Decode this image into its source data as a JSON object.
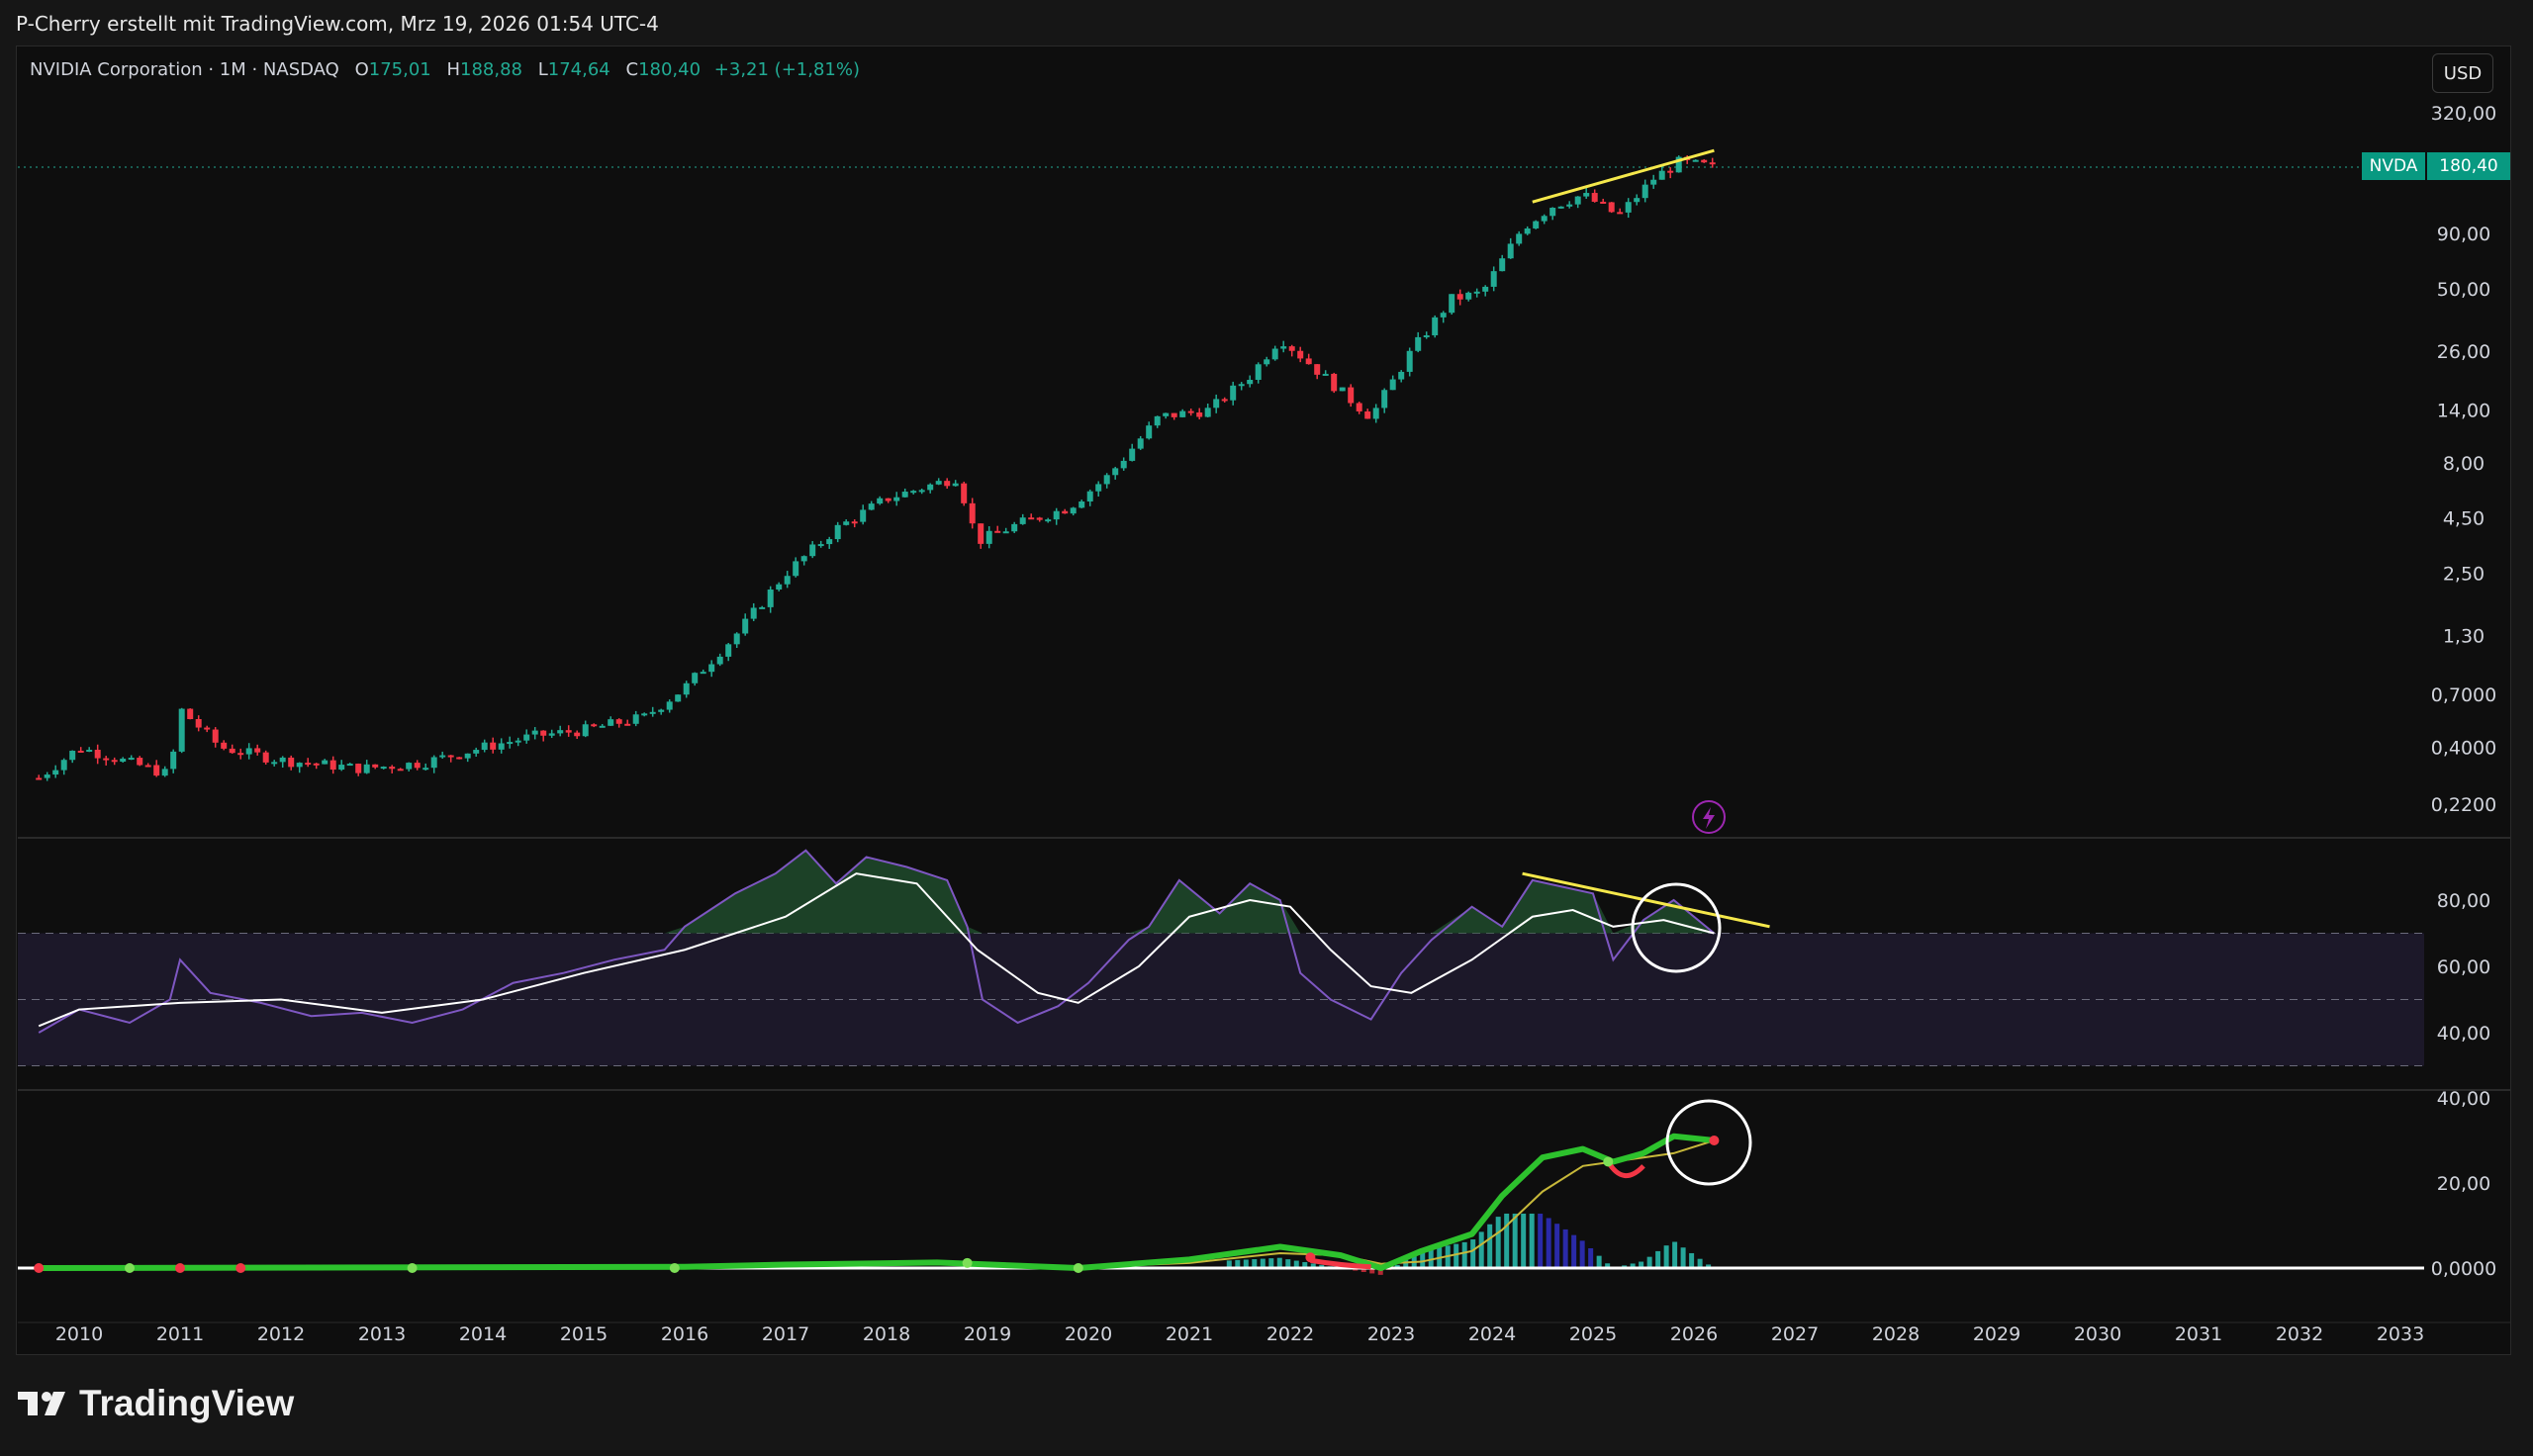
{
  "header": {
    "text": "P-Cherry erstellt mit TradingView.com, Mrz 19, 2026 01:54 UTC-4"
  },
  "legend": {
    "symbol": "NVIDIA Corporation · 1M · NASDAQ",
    "o_label": "O",
    "o_value": "175,01",
    "h_label": "H",
    "h_value": "188,88",
    "l_label": "L",
    "l_value": "174,64",
    "c_label": "C",
    "c_value": "180,40",
    "change": "+3,21 (+1,81%)"
  },
  "currency": "USD",
  "last_price": {
    "symbol": "NVDA",
    "value": "180,40"
  },
  "branding": {
    "name": "TradingView"
  },
  "colors": {
    "up": "#22ab94",
    "down": "#f23645",
    "trendline": "#f5e84b",
    "rsi": "#7e57c2",
    "rsi_ma": "#ffffff",
    "macd": "#2dc22d",
    "signal": "#c7b83a",
    "background": "#0e0e0e"
  },
  "chart_data": [
    {
      "type": "candlestick",
      "title": "NVIDIA Corporation · 1M · NASDAQ",
      "scale": "log",
      "y_ticks": [
        "320,00",
        "90,00",
        "50,00",
        "26,00",
        "14,00",
        "8,00",
        "4,50",
        "2,50",
        "1,30",
        "0,7000",
        "0,4000",
        "0,2200"
      ],
      "y_tick_values": [
        320,
        90,
        50,
        26,
        14,
        8,
        4.5,
        2.5,
        1.3,
        0.7,
        0.4,
        0.22
      ],
      "x_ticks": [
        "2010",
        "2011",
        "2012",
        "2013",
        "2014",
        "2015",
        "2016",
        "2017",
        "2018",
        "2019",
        "2020",
        "2021",
        "2022",
        "2023",
        "2024",
        "2025",
        "2026",
        "2027",
        "2028",
        "2029",
        "2030",
        "2031",
        "2032",
        "2033"
      ],
      "x_range": [
        2009.6,
        2033.5
      ],
      "annotation_anchors": [
        {
          "x": 2009.6,
          "y": 0.29
        },
        {
          "x": 2010.0,
          "y": 0.4
        },
        {
          "x": 2010.9,
          "y": 0.3
        },
        {
          "x": 2011.0,
          "y": 0.6
        },
        {
          "x": 2011.4,
          "y": 0.4
        },
        {
          "x": 2012.0,
          "y": 0.35
        },
        {
          "x": 2012.8,
          "y": 0.32
        },
        {
          "x": 2013.4,
          "y": 0.34
        },
        {
          "x": 2014.0,
          "y": 0.4
        },
        {
          "x": 2014.5,
          "y": 0.45
        },
        {
          "x": 2015.0,
          "y": 0.48
        },
        {
          "x": 2015.6,
          "y": 0.55
        },
        {
          "x": 2016.0,
          "y": 0.75
        },
        {
          "x": 2016.5,
          "y": 1.3
        },
        {
          "x": 2017.0,
          "y": 2.5
        },
        {
          "x": 2017.5,
          "y": 4.0
        },
        {
          "x": 2018.0,
          "y": 5.5
        },
        {
          "x": 2018.7,
          "y": 6.9
        },
        {
          "x": 2018.9,
          "y": 3.5
        },
        {
          "x": 2019.3,
          "y": 4.2
        },
        {
          "x": 2019.8,
          "y": 5.0
        },
        {
          "x": 2020.2,
          "y": 7.0
        },
        {
          "x": 2020.7,
          "y": 13.0
        },
        {
          "x": 2021.2,
          "y": 14.0
        },
        {
          "x": 2021.6,
          "y": 20.0
        },
        {
          "x": 2021.9,
          "y": 30.0
        },
        {
          "x": 2022.5,
          "y": 17.0
        },
        {
          "x": 2022.8,
          "y": 13.0
        },
        {
          "x": 2023.2,
          "y": 26.0
        },
        {
          "x": 2023.6,
          "y": 45.0
        },
        {
          "x": 2023.9,
          "y": 48.0
        },
        {
          "x": 2024.3,
          "y": 95.0
        },
        {
          "x": 2024.6,
          "y": 120.0
        },
        {
          "x": 2024.9,
          "y": 135.0
        },
        {
          "x": 2025.25,
          "y": 108.0
        },
        {
          "x": 2025.6,
          "y": 160.0
        },
        {
          "x": 2025.85,
          "y": 190.0
        },
        {
          "x": 2026.2,
          "y": 180.4
        }
      ],
      "last_close": 180.4,
      "annotations": [
        {
          "type": "trendline",
          "x": [
            2024.4,
            2026.2
          ],
          "y": [
            125,
            215
          ]
        }
      ]
    },
    {
      "type": "line",
      "panel": "RSI",
      "y_ticks": [
        "80,00",
        "60,00",
        "40,00"
      ],
      "y_tick_values": [
        80,
        60,
        40
      ],
      "bands": [
        30,
        50,
        70
      ],
      "series": [
        {
          "x": [
            2009.6,
            2010.0,
            2010.5,
            2010.9,
            2011.0,
            2011.3,
            2011.8,
            2012.3,
            2012.8,
            2013.3,
            2013.8,
            2014.3,
            2014.8,
            2015.3,
            2015.8,
            2016.0,
            2016.5,
            2016.9,
            2017.2,
            2017.5,
            2017.8,
            2018.2,
            2018.6,
            2018.8,
            2018.95,
            2019.3,
            2019.7,
            2020.0,
            2020.4,
            2020.6,
            2020.9,
            2021.3,
            2021.6,
            2021.9,
            2022.1,
            2022.4,
            2022.8,
            2023.1,
            2023.4,
            2023.8,
            2024.1,
            2024.4,
            2024.7,
            2025.0,
            2025.2,
            2025.5,
            2025.8,
            2026.2
          ],
          "y": [
            40,
            47,
            43,
            50,
            62,
            52,
            49,
            45,
            46,
            43,
            47,
            55,
            58,
            62,
            65,
            72,
            82,
            88,
            95,
            85,
            93,
            90,
            86,
            72,
            50,
            43,
            48,
            55,
            68,
            72,
            86,
            76,
            85,
            80,
            58,
            50,
            44,
            58,
            68,
            78,
            72,
            86,
            84,
            82,
            62,
            74,
            80,
            70
          ]
        },
        {
          "x": [
            2009.6,
            2010.0,
            2011.0,
            2012.0,
            2013.0,
            2014.0,
            2015.0,
            2016.0,
            2017.0,
            2017.7,
            2018.3,
            2018.9,
            2019.5,
            2019.9,
            2020.5,
            2021.0,
            2021.6,
            2022.0,
            2022.4,
            2022.8,
            2023.2,
            2023.8,
            2024.4,
            2024.8,
            2025.2,
            2025.7,
            2026.2
          ],
          "y": [
            42,
            47,
            49,
            50,
            46,
            50,
            58,
            65,
            75,
            88,
            85,
            65,
            52,
            49,
            60,
            75,
            80,
            78,
            65,
            54,
            52,
            62,
            75,
            77,
            72,
            74,
            70
          ]
        }
      ],
      "annotations": [
        {
          "type": "trendline",
          "x": [
            2024.3,
            2026.75
          ],
          "y": [
            88,
            72
          ]
        }
      ]
    },
    {
      "type": "line",
      "panel": "MACD",
      "y_ticks": [
        "40,00",
        "20,00",
        "0,0000"
      ],
      "y_tick_values": [
        40,
        20,
        0
      ],
      "series": [
        {
          "x": [
            2009.6,
            2016.0,
            2017.0,
            2018.5,
            2019.9,
            2021.0,
            2021.9,
            2022.5,
            2022.9,
            2023.3,
            2023.8,
            2024.1,
            2024.5,
            2024.9,
            2025.2,
            2025.5,
            2025.8,
            2026.2
          ],
          "y": [
            0,
            0.3,
            0.8,
            1.3,
            0,
            2,
            5,
            3,
            0,
            4,
            8,
            17,
            26,
            28,
            25,
            27,
            31,
            30
          ]
        },
        {
          "x": [
            2009.6,
            2016.0,
            2017.0,
            2018.5,
            2019.9,
            2021.0,
            2021.9,
            2022.5,
            2022.9,
            2023.3,
            2023.8,
            2024.1,
            2024.5,
            2024.9,
            2025.2,
            2025.5,
            2025.8,
            2026.2
          ],
          "y": [
            0,
            0.1,
            0.4,
            1.0,
            0.2,
            1.2,
            3.5,
            3,
            1,
            1.5,
            4,
            9,
            18,
            24,
            25,
            26,
            27,
            30
          ]
        }
      ],
      "histogram": {
        "x_start": 2009.6,
        "x_step": 0.0833
      },
      "annotations": [
        {
          "type": "circle",
          "x": 2026.2,
          "y": 30
        }
      ]
    }
  ]
}
